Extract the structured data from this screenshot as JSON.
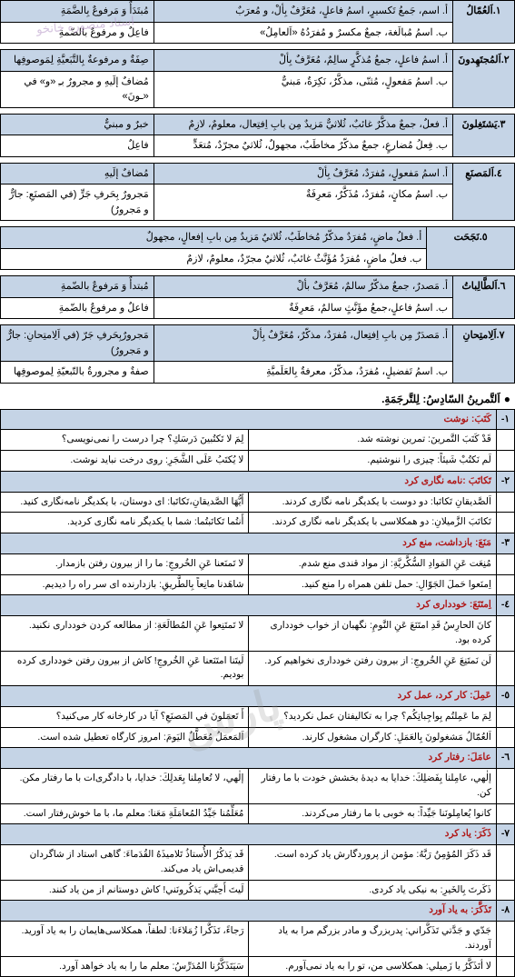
{
  "grammar": [
    {
      "num": "١.اَلعُمّالُ",
      "a_main": "أ. اسم، جَمعُ تَكسيرٍ، اسمُ فاعلٍ، مُعَرَّفٌ بِألْ، و مُعرَبٌ",
      "a_side": "مُبتَدَأٌ وَ مَرفوعٌ بِالضَّمَةِ",
      "b_main": "ب. اسمُ مُبالَغة، جمعٌ مكسرٌ و مُفرَدُهُ «اَلعامِلُ»",
      "b_side": "فاعِلٌ و مرفوعٌ بالضّمةِ"
    },
    {
      "num": "٢.اَلمُجتَهِدونَ",
      "a_main": "أ. اسمُ فاعلٍ، جمعُ مُذكَّرٍ سالِمٌ، مُعَرَّفٌ بِألْ",
      "a_side": "صِفَةٌ و مرفوعةٌ بِالتَّبَعيَّةِ لِمَوصوفِها",
      "b_main": "ب. اسمُ مَفعولٍ، مُثنّی، مذکَّرٌ، نَکِرَةٌ، مَبنيٌّ",
      "b_side": "مُضافٌ إلَيهِ و مجرورٌ بـِ «و» في «ـونَ»"
    },
    {
      "num": "٣.يَشتَغِلونَ",
      "a_main": "أ. فعلٌ، جمعٌ مذكَّرٌ غائبٌ، ثُلاثيٌّ مَزيدٌ مِن بابِ اِفتِعال، معلومٌ، لازِمٌ",
      "a_side": "خبرٌ و مبنيٌّ",
      "b_main": "ب. فِعلُ مُضارعٍ، جمعٌ مذكّرٌ مخاطَبٌ، مجهولٌ، ثُلاثيٌ مجرّدٌ، مُتعَدٍّ",
      "b_side": "فاعِلٌ"
    },
    {
      "num": "٤.اَلمَصنَعِ",
      "a_main": "أ. اسمُ مَفعولٍ، مُفرَدٌ، مُعَرَّفٌ بِألْ",
      "a_side": "مُضافٌ إلَيهِ",
      "b_main": "ب. اسمُ مكانٍ، مُفرَدٌ، مُذَكَّرٌ، مَعرِفَةٌ",
      "b_side": "مَجرورٌ بِحَرفِ جَرٍّ (في المَصنَعِ: جارٌّ و مَجرورٌ)"
    },
    {
      "num": "٥.نَجَحَت",
      "a_main": "أ. فعلُ ماضٍ، مُفرَدٌ مذکّرٌ مُخاطَبٌ، ثُلاثيٌ مَزيدٌ مِن بابِ إفعالٍ، مجهولٌ",
      "a_side": "",
      "b_main": "ب. فعلُ ماضٍ، مُفرَدٌ مُؤَنَّثٌ غائبٌ، ثُلاثيٌ مجرّدٌ، معلومٌ، لازمٌ",
      "b_side": ""
    },
    {
      "num": "٦.اَلطَّالِباتُ",
      "a_main": "أ. مَصدرٌ، جمعٌ مذكّرٌ سالمٌ، مُعَرَّفٌ بألْ",
      "a_side": "مُبتدأٌ وَ مَرفوعٌ بالضّمةِ",
      "b_main": "ب. اسمُ فاعلٍ،جمعُ مؤَنَّثٍ سالمٌ، مَعرِفَةٌ",
      "b_side": "فاعلٌ و مرفوعٌ بالضّمةِ"
    },
    {
      "num": "٧.اَلِامتِحانِ",
      "a_main": "أ. مَصدَرٌ مِن بابِ اِفتِعال، مُفرَدٌ، مذكّرٌ، مُعَرَّفٌ بِألْ",
      "a_side": "مَجرورٌبِحَرفِ جَرّ (في اَلِامتِحانِ: جارٌّ و مَجرورٌ)",
      "b_main": "ب. اسمُ تَفضيلٍ، مُفرَدٌ، مذكّرٌ، معرفةٌ بِالعَلَميَّةِ",
      "b_side": "صفةٌ و مجرورةٌ بالتّبعيّةِ لِموصوفِها"
    }
  ],
  "section_title": "اَلتَّمرينُ السّادِسُ: لِلتَّرجَمَةِ.",
  "trans": [
    {
      "num": "١-",
      "hdr": "کَتَبَ: نوشت",
      "rows": [
        [
          "قَدْ کَتَبَ التَّمرينَ: تمرین نوشته شد.",
          "لِمَ لا تَکتُبينَ دَرسَكِ؟ چرا درست را نمی‌نویسی؟"
        ],
        [
          "لَم نَکتُبْ شَيئاً: چیزی را ننوشتیم.",
          "لا يُکتَبُ عَلَی الشَّجَرِ: روی درخت نباید نوشت."
        ]
      ]
    },
    {
      "num": "٢-",
      "hdr": "تَکاتَبَ :نامه نگاری کرد",
      "rows": [
        [
          "اَلصَّديقانِ تَکاتَبا: دو دوست با یکدیگر نامه نگاری کردند.",
          "أَيُّهَا الصَّديقانِ،تَکاتَبا: ای دوستان، با یکدیگر نامه‌نگاری کنید."
        ],
        [
          "تَکاتَبَ الزَّميلانِ: دو همکلاسی با یکدیگر نامه نگاری کردند.",
          "أَنتُما تَکاتَبتُما: شما با یکدیگر نامه نگاری کردید."
        ]
      ]
    },
    {
      "num": "٣-",
      "hdr": "مَنَعَ: بازداشت، منع کرد",
      "rows": [
        [
          "مُنِعَت عَنِ المَوادِ السُّکَّريَّةِ: از مواد قندی منع شدم.",
          "لا تَمنَعنا عَنِ الخُروجِ: ما را از بیرون رفتن بازمدار."
        ],
        [
          "اِمنَعوا حَملَ الجَوّالِ: حمل تلفن همراه را منع کنید.",
          "شاهَدنا مانِعاً بِالطَّريقِ: بازدارنده ای سر راه را دیدیم."
        ]
      ]
    },
    {
      "num": "٤-",
      "hdr": "اِمتَنَعَ: خودداری کرد",
      "rows": [
        [
          "کانَ الحارِسُ قَدِ امتَنَعَ عَنِ النَّومِ: نگهبان از خواب خودداری کرده بود.",
          "لا تَمتَنِعوا عَنِ المُطالَعَةِ: از مطالعه کردن خودداری نکنید."
        ],
        [
          "لَن نَمتَنِعَ عَنِ الخُروجِ: از بیرون رفتن خودداری نخواهیم کرد.",
          "لَيتَنا امتَنَعنا عَنِ الخُروجِ! کاش از بیرون رفتن خودداری کرده بودیم."
        ]
      ]
    },
    {
      "num": "٥-",
      "hdr": "عَمِلَ: کار کرد، عمل کرد",
      "rows": [
        [
          "لِمَ ما عَمِلتُم بِواجِباتِکُم؟ چرا به تکالیفتان عمل نکردید؟",
          "أَ تَعمَلونَ في المَصنَعِ؟ آیا در کارخانه کار می‌کنید؟"
        ],
        [
          "اَلعُمّالُ مَشغولونَ بِالعَمَلِ: کارگران مشغول کارند.",
          "اَلمَعمَلُ مُعَطَّلٌ اليَومَ: امروز کارگاه تعطیل شده است."
        ]
      ]
    },
    {
      "num": "٦-",
      "hdr": "عامَلَ: رفتار کرد",
      "rows": [
        [
          "إلٰهي، عامِلنا بِفَضلِكَ: خدایا به دیدۀ بخشش خودت با ما رفتار کن.",
          "إلٰهي، لا تُعامِلنا بِعَدلِكَ: خدایا، با دادگری‌ات با ما رفتار مکن."
        ],
        [
          "کانوا يُعامِلونَنا جَيِّداً: به خوبی با ما رفتار می‌کردند.",
          "مُعَلِّمُنا جَيِّدُ المُعامَلَةِ مَعَنا: معلم ما، با ما خوش‌رفتار است."
        ]
      ]
    },
    {
      "num": "٧-",
      "hdr": "ذَکَرَ: یاد کرد",
      "rows": [
        [
          "قَد ذَکَرَ المُؤمِنُ رَبَّهُ: مؤمن از پروردگارش یاد کرده است.",
          "قَد يَذکُرُ الأُستاذُ تَلامیذَهُ القُدَماءَ: گاهی استاد از شاگردان قدیمی‌اش یاد می‌کند."
        ],
        [
          "ذَکَرتَ بِالخَيرِ: به نیکی یاد کردی.",
          "لَيتَ أَحِبَّتي يَذکُرونَني! کاش دوستانم از من یاد کنند."
        ]
      ]
    },
    {
      "num": "٨-",
      "hdr": "تَذَکَّرَ: به یاد آورد",
      "rows": [
        [
          "جَدّي و جَدَّتي تَذَکَّراني: پدربزرگ و مادر بزرگم مرا به یاد آوردند.",
          "رَجاءً، تَذَکَّرا زُمَلاءَنا: لطفاً، همکلاسی‌هایمان را به یاد آورید."
        ],
        [
          "لا أتَذَکَّرُ یا زَميلي: همکلاسی من، تو را به یاد نمی‌آورم.",
          "سَيَتَذَکَّرُنا المُدَرِّسُ: معلم ما را به یاد خواهد آورد."
        ]
      ]
    }
  ]
}
